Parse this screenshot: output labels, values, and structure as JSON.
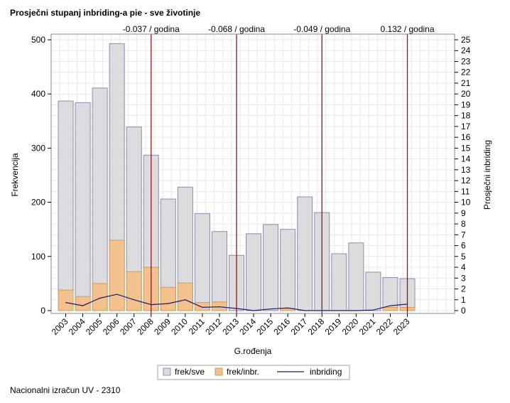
{
  "title": "Prosječni stupanj inbriding-a pie - sve životinje",
  "footer": "Nacionalni izračun UV - 2310",
  "colors": {
    "bar_all_fill": "#dcdcdf",
    "bar_all_stroke": "#8d8dae",
    "bar_inbr_fill": "#f2c18d",
    "bar_inbr_stroke": "#cc9a62",
    "line": "#1a1a6e",
    "vline": "#8b1a1a",
    "grid": "#e9e9ee"
  },
  "chart_data": {
    "type": "bar",
    "xlabel": "G.rođenja",
    "ylabel": "Frekvencija",
    "y2label": "Prosječni inbriding",
    "ylim": [
      0,
      500
    ],
    "yticks": [
      0,
      100,
      200,
      300,
      400,
      500
    ],
    "y2lim": [
      0,
      25
    ],
    "y2ticks": [
      0,
      1,
      2,
      3,
      4,
      5,
      6,
      7,
      8,
      9,
      10,
      11,
      12,
      13,
      14,
      15,
      16,
      17,
      18,
      19,
      20,
      21,
      22,
      23,
      24,
      25
    ],
    "categories": [
      "2003",
      "2004",
      "2005",
      "2006",
      "2007",
      "2008",
      "2009",
      "2010",
      "2011",
      "2012",
      "2013",
      "2014",
      "2015",
      "2016",
      "2017",
      "2018",
      "2019",
      "2020",
      "2021",
      "2022",
      "2023"
    ],
    "series": [
      {
        "name": "frek/sve",
        "kind": "bar",
        "axis": "left",
        "values": [
          387,
          384,
          411,
          493,
          339,
          287,
          206,
          228,
          179,
          146,
          102,
          142,
          159,
          150,
          210,
          181,
          105,
          125,
          71,
          61,
          59
        ]
      },
      {
        "name": "frek/inbr.",
        "kind": "bar",
        "axis": "left",
        "values": [
          38,
          26,
          50,
          130,
          72,
          80,
          43,
          51,
          15,
          16,
          0,
          0,
          0,
          4,
          0,
          0,
          0,
          0,
          0,
          6,
          6
        ]
      },
      {
        "name": "inbriding",
        "kind": "line",
        "axis": "right",
        "values": [
          0.75,
          0.45,
          1.15,
          1.5,
          1.0,
          0.55,
          0.65,
          1.0,
          0.3,
          0.35,
          0.2,
          0.0,
          0.15,
          0.25,
          0.0,
          0.0,
          0.0,
          0.0,
          0.05,
          0.45,
          0.6
        ]
      }
    ],
    "reference_lines": [
      {
        "at": "2008",
        "label": "-0.037 / godina"
      },
      {
        "at": "2013",
        "label": "-0.068 / godina"
      },
      {
        "at": "2018",
        "label": "-0.049 / godina"
      },
      {
        "at": "2023",
        "label": "0.132 / godina"
      }
    ],
    "legend": {
      "placement": "bottom",
      "items": [
        {
          "label": "frek/sve",
          "kind": "bar-all"
        },
        {
          "label": "frek/inbr.",
          "kind": "bar-inbr"
        },
        {
          "label": "inbriding",
          "kind": "line"
        }
      ]
    },
    "grid": true
  }
}
